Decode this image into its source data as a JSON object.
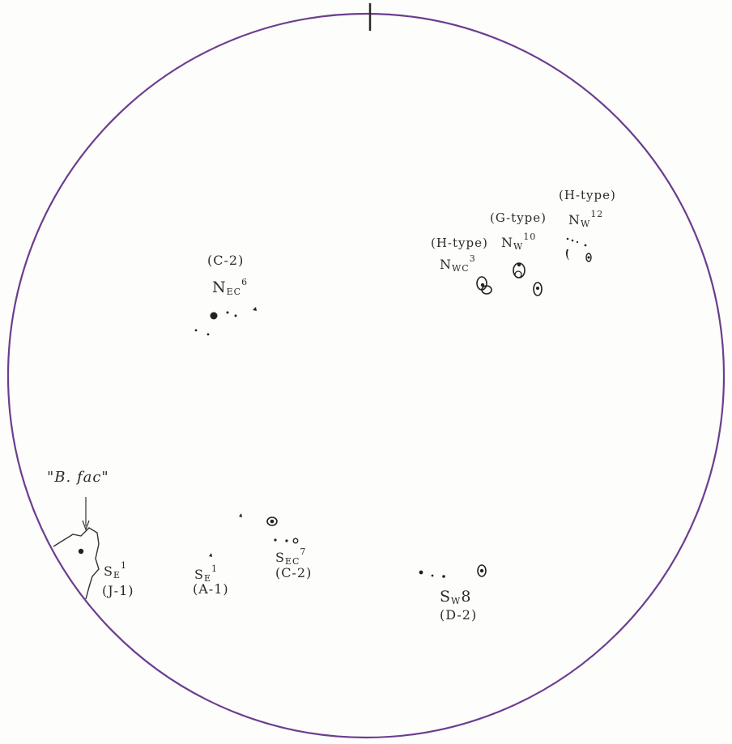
{
  "groups": {
    "nec6": {
      "type": "(C-2)",
      "base": "N",
      "sub": "EC",
      "sup": "6"
    },
    "nwc3": {
      "type": "(H-type)",
      "base": "N",
      "sub": "WC",
      "sup": "3"
    },
    "nw10": {
      "type": "(G-type)",
      "base": "N",
      "sub": "W",
      "sup": "10"
    },
    "nw12": {
      "type": "(H-type)",
      "base": "N",
      "sub": "W",
      "sup": "12"
    },
    "se1_j": {
      "base": "S",
      "sub": "E",
      "sup": "1",
      "type": "(J-1)"
    },
    "se1_a": {
      "base": "S",
      "sub": "E",
      "sup": "1",
      "type": "(A-1)"
    },
    "sec7": {
      "base": "S",
      "sub": "EC",
      "sup": "7",
      "type": "(C-2)"
    },
    "sw8": {
      "base": "S",
      "sub": "W",
      "sup": "8",
      "type": "(D-2)"
    }
  },
  "facula_note": "\"B. fac\"",
  "colors": {
    "limb": "#6a3e8f",
    "ink": "#2a2a2a",
    "paper": "#fdfdfb"
  }
}
